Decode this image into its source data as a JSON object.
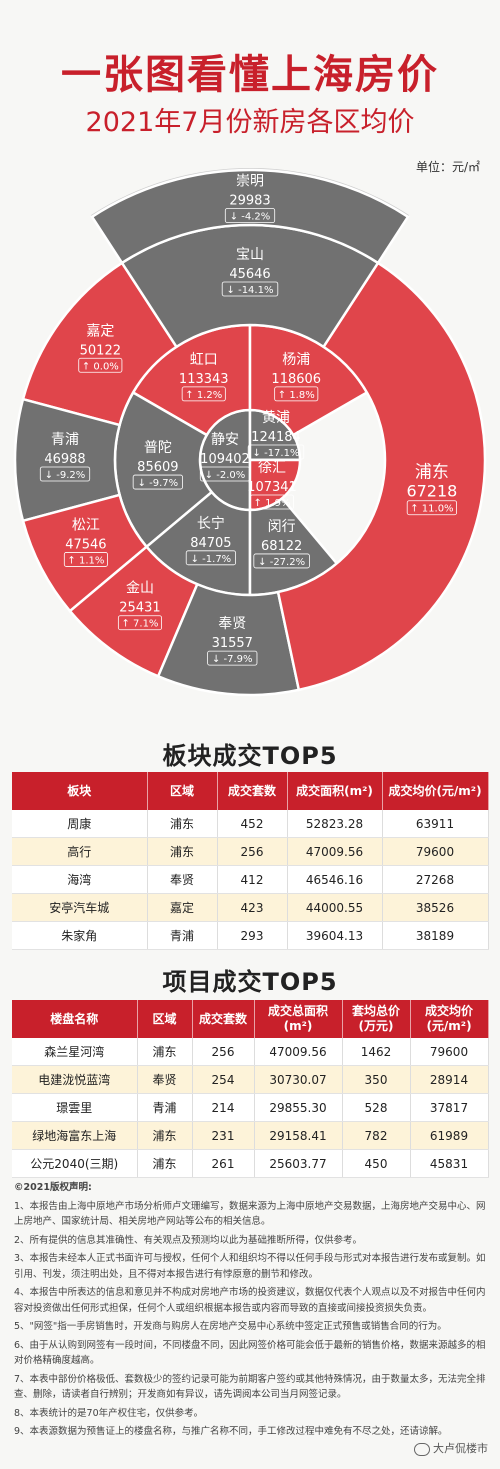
{
  "header": {
    "title": "一张图看懂上海房价",
    "subtitle": "2021年7月份新房各区均价",
    "unit": "单位：元/㎡"
  },
  "colors": {
    "red": "#e0454b",
    "gray": "#717171",
    "light_gray": "#d8d8d8",
    "title_red": "#c8202b"
  },
  "chart_data": {
    "type": "sunburst",
    "districts": [
      {
        "name": "崇明",
        "price": 29983,
        "change": "-4.2%",
        "ring": 4
      },
      {
        "name": "宝山",
        "price": 45646,
        "change": "-14.1%",
        "ring": 3
      },
      {
        "name": "浦东",
        "price": 67218,
        "change": "11.0%",
        "ring": 3
      },
      {
        "name": "奉贤",
        "price": 31557,
        "change": "-7.9%",
        "ring": 3
      },
      {
        "name": "金山",
        "price": 25431,
        "change": "7.1%",
        "ring": 3
      },
      {
        "name": "松江",
        "price": 47546,
        "change": "1.1%",
        "ring": 3
      },
      {
        "name": "青浦",
        "price": 46988,
        "change": "-9.2%",
        "ring": 3
      },
      {
        "name": "嘉定",
        "price": 50122,
        "change": "0.0%",
        "ring": 3
      },
      {
        "name": "杨浦",
        "price": 118606,
        "change": "1.8%",
        "ring": 2
      },
      {
        "name": "闵行",
        "price": 68122,
        "change": "-27.2%",
        "ring": 2
      },
      {
        "name": "长宁",
        "price": 84705,
        "change": "-1.7%",
        "ring": 2
      },
      {
        "name": "普陀",
        "price": 85609,
        "change": "-9.7%",
        "ring": 2
      },
      {
        "name": "虹口",
        "price": 113343,
        "change": "1.2%",
        "ring": 2
      },
      {
        "name": "黄浦",
        "price": 124184,
        "change": "-17.1%",
        "ring": 1
      },
      {
        "name": "徐汇",
        "price": 107341,
        "change": "1.9%",
        "ring": 1
      },
      {
        "name": "静安",
        "price": 109402,
        "change": "-2.0%",
        "ring": 1
      }
    ]
  },
  "block_top5": {
    "title": "板块成交TOP5",
    "headers": [
      "板块",
      "区域",
      "成交套数",
      "成交面积(m²)",
      "成交均价(元/m²)"
    ],
    "rows": [
      [
        "周康",
        "浦东",
        "452",
        "52823.28",
        "63911"
      ],
      [
        "高行",
        "浦东",
        "256",
        "47009.56",
        "79600"
      ],
      [
        "海湾",
        "奉贤",
        "412",
        "46546.16",
        "27268"
      ],
      [
        "安亭汽车城",
        "嘉定",
        "423",
        "44000.55",
        "38526"
      ],
      [
        "朱家角",
        "青浦",
        "293",
        "39604.13",
        "38189"
      ]
    ]
  },
  "project_top5": {
    "title": "项目成交TOP5",
    "headers": [
      "楼盘名称",
      "区域",
      "成交套数",
      "成交总面积(m²)",
      "套均总价(万元)",
      "成交均价(元/m²)"
    ],
    "rows": [
      [
        "森兰星河湾",
        "浦东",
        "256",
        "47009.56",
        "1462",
        "79600"
      ],
      [
        "电建泷悦蓝湾",
        "奉贤",
        "254",
        "30730.07",
        "350",
        "28914"
      ],
      [
        "璟雲里",
        "青浦",
        "214",
        "29855.30",
        "528",
        "37817"
      ],
      [
        "绿地海富东上海",
        "浦东",
        "231",
        "29158.41",
        "782",
        "61989"
      ],
      [
        "公元2040(三期)",
        "浦东",
        "261",
        "25603.77",
        "450",
        "45831"
      ]
    ]
  },
  "notes": {
    "head": "©2021版权声明:",
    "items": [
      "1、本报告由上海中原地产市场分析师卢文珊编写，数据来源为上海中原地产交易数据，上海房地产交易中心、网上房地产、国家统计局、相关房地产网站等公布的相关信息。",
      "2、所有提供的信息其准确性、有关观点及预测均以此为基础推断所得，仅供参考。",
      "3、本报告未经本人正式书面许可与授权，任何个人和组织均不得以任何手段与形式对本报告进行发布或复制。如引用、刊发，须注明出处，且不得对本报告进行有悖原意的删节和修改。",
      "4、本报告中所表达的信息和意见并不构成对房地产市场的投资建议，数据仅代表个人观点以及不对报告中任何内容对投资做出任何形式担保，任何个人或组织根据本报告或内容而导致的直接或间接投资损失负责。",
      "5、\"网签\"指一手房销售时，开发商与购房人在房地产交易中心系统中签定正式预售或销售合同的行为。",
      "6、由于从认购到网签有一段时间，不同楼盘不同，因此网签价格可能会低于最新的销售价格，数据来源越多的相对价格精确度越高。",
      "7、本表中部份价格极低、套数极少的签约记录可能为前期客户签约或其他特殊情况，由于数量太多，无法完全排查、删除，请读者自行辨别；开发商如有异议，请先调阅本公司当月网签记录。",
      "8、本表统计的是70年产权住宅，仅供参考。",
      "9、本表源数据为预售证上的楼盘名称，与推广名称不同，手工修改过程中难免有不尽之处，还请谅解。"
    ]
  },
  "brand": {
    "name": "大卢侃楼市"
  }
}
